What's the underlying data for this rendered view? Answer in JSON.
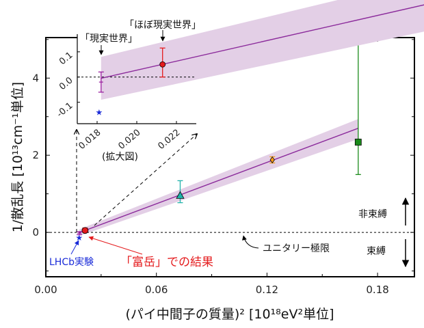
{
  "chart_data": {
    "type": "scatter",
    "xlabel": "(パイ中間子の質量)² [10¹⁸eV²単位]",
    "ylabel": "1/散乱長 [10¹³cm⁻¹単位]",
    "xlim": [
      0,
      0.2
    ],
    "ylim": [
      -1.15,
      5.05
    ],
    "xticks": [
      "0.00",
      "0.06",
      "0.12",
      "0.18"
    ],
    "yticks": [
      "0",
      "2",
      "4"
    ],
    "grid": false,
    "points": [
      {
        "x": 0.0182,
        "y": -0.02,
        "err_low": 0.04,
        "err_high": 0.04,
        "marker": "bar",
        "color": "#9b1fa0"
      },
      {
        "x": 0.0181,
        "y": -0.14,
        "marker": "star",
        "color": "#1a2bd8"
      },
      {
        "x": 0.0213,
        "y": 0.05,
        "err_low": 0.05,
        "err_high": 0.065,
        "marker": "circle",
        "color": "#e41a1c"
      },
      {
        "x": 0.0729,
        "y": 0.96,
        "err_low": 0.19,
        "err_high": 0.38,
        "marker": "triangle",
        "color": "#20b2aa"
      },
      {
        "x": 0.1229,
        "y": 1.88,
        "err_low": 0.08,
        "err_high": 0.08,
        "marker": "diamond",
        "color": "#f59a1b"
      },
      {
        "x": 0.1695,
        "y": 2.34,
        "err_low": 0.84,
        "err_high": 3.18,
        "marker": "square",
        "color": "#1a8a1a"
      }
    ],
    "fit": {
      "x": [
        0.0182,
        0.1695
      ],
      "y": [
        -0.005,
        2.7
      ],
      "band_low": [
        -0.09,
        2.42
      ],
      "band_high": [
        0.08,
        2.94
      ],
      "color": "#8b2a9b",
      "band_color": "#e3cfe6"
    },
    "unitarity_line_y": 0,
    "inset": {
      "xlim": [
        0.017,
        0.023
      ],
      "ylim": [
        -0.185,
        0.17
      ],
      "xticks": [
        "0.018",
        "0.020",
        "0.022"
      ],
      "yticks": [
        "0.1",
        "0.0",
        "-0.1"
      ],
      "caption": "(拡大図)"
    },
    "annotations": {
      "real_world": "「現実世界」",
      "almost_real_world": "「ほぼ現実世界」",
      "lhcb": "LHCb実験",
      "fugaku": "「富岳」での結果",
      "unitarity": "ユニタリー極限",
      "unbound": "非束縛",
      "bound": "束縛"
    }
  }
}
